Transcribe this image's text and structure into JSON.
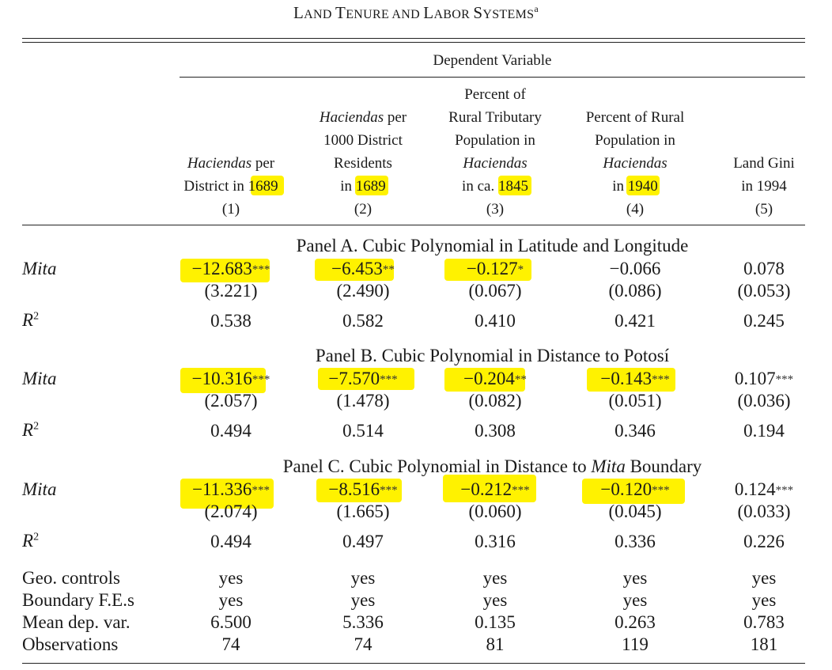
{
  "title": {
    "main_a": "L",
    "main_b": "AND ",
    "main_c": "T",
    "main_d": "ENURE AND ",
    "main_e": "L",
    "main_f": "ABOR ",
    "main_g": "S",
    "main_h": "YSTEMS",
    "sup": "a"
  },
  "dep_var": "Dependent Variable",
  "columns": [
    {
      "lines": [
        "",
        "",
        "",
        "Haciendas per",
        "District in 1689",
        "(1)"
      ],
      "italic_word": "Haciendas",
      "hl": "1689"
    },
    {
      "lines": [
        "",
        "Haciendas per",
        "1000 District",
        "Residents",
        "in 1689",
        "(2)"
      ],
      "italic_word": "Haciendas",
      "hl": "1689"
    },
    {
      "lines": [
        "Percent of",
        "Rural Tributary",
        "Population in",
        "Haciendas",
        "in ca. 1845",
        "(3)"
      ],
      "italic_word": "Haciendas",
      "hl": "1845"
    },
    {
      "lines": [
        "",
        "Percent of Rural",
        "Population in",
        "Haciendas",
        "in 1940",
        "(4)"
      ],
      "italic_word": "Haciendas",
      "hl": "1940"
    },
    {
      "lines": [
        "",
        "",
        "",
        "Land Gini",
        "in 1994",
        "(5)"
      ],
      "italic_word": "",
      "hl": ""
    }
  ],
  "panels": [
    {
      "title": "Panel A. Cubic Polynomial in Latitude and Longitude",
      "mita_label": "Mita",
      "coef": [
        {
          "v": "−12.683",
          "s": "***"
        },
        {
          "v": "−6.453",
          "s": "**"
        },
        {
          "v": "−0.127",
          "s": "*"
        },
        {
          "v": "−0.066",
          "s": ""
        },
        {
          "v": "0.078",
          "s": ""
        }
      ],
      "se": [
        "(3.221)",
        "(2.490)",
        "(0.067)",
        "(0.086)",
        "(0.053)"
      ],
      "r2_label": "R",
      "r2_sup": "2",
      "r2": [
        "0.538",
        "0.582",
        "0.410",
        "0.421",
        "0.245"
      ]
    },
    {
      "title": "Panel B. Cubic Polynomial in Distance to Potosí",
      "mita_label": "Mita",
      "coef": [
        {
          "v": "−10.316",
          "s": "***"
        },
        {
          "v": "−7.570",
          "s": "***"
        },
        {
          "v": "−0.204",
          "s": "**"
        },
        {
          "v": "−0.143",
          "s": "***"
        },
        {
          "v": "0.107",
          "s": "***"
        }
      ],
      "se": [
        "(2.057)",
        "(1.478)",
        "(0.082)",
        "(0.051)",
        "(0.036)"
      ],
      "r2_label": "R",
      "r2_sup": "2",
      "r2": [
        "0.494",
        "0.514",
        "0.308",
        "0.346",
        "0.194"
      ]
    },
    {
      "title_a": "Panel C. Cubic Polynomial in Distance to ",
      "title_b": "Mita",
      "title_c": " Boundary",
      "mita_label": "Mita",
      "coef": [
        {
          "v": "−11.336",
          "s": "***"
        },
        {
          "v": "−8.516",
          "s": "***"
        },
        {
          "v": "−0.212",
          "s": "***"
        },
        {
          "v": "−0.120",
          "s": "***"
        },
        {
          "v": "0.124",
          "s": "***"
        }
      ],
      "se": [
        "(2.074)",
        "(1.665)",
        "(0.060)",
        "(0.045)",
        "(0.033)"
      ],
      "r2_label": "R",
      "r2_sup": "2",
      "r2": [
        "0.494",
        "0.497",
        "0.316",
        "0.336",
        "0.226"
      ]
    }
  ],
  "footer": [
    {
      "label": "Geo. controls",
      "vals": [
        "yes",
        "yes",
        "yes",
        "yes",
        "yes"
      ]
    },
    {
      "label": "Boundary F.E.s",
      "vals": [
        "yes",
        "yes",
        "yes",
        "yes",
        "yes"
      ]
    },
    {
      "label": "Mean dep. var.",
      "vals": [
        "6.500",
        "5.336",
        "0.135",
        "0.263",
        "0.783"
      ]
    },
    {
      "label": "Observations",
      "vals": [
        "74",
        "74",
        "81",
        "119",
        "181"
      ]
    }
  ],
  "highlight_color": "#fff200"
}
